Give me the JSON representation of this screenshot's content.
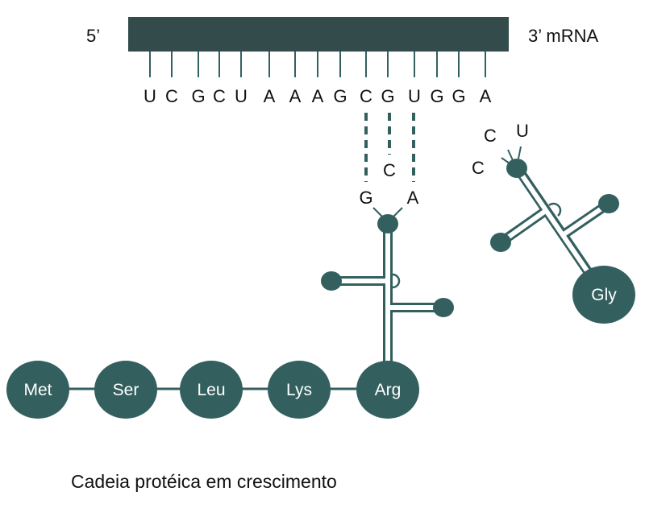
{
  "colors": {
    "teal": "#33605f",
    "strand": "#334c4b",
    "text": "#111111"
  },
  "mrna": {
    "five_prime": "5’",
    "three_prime": "3’ mRNA",
    "bases": [
      "U",
      "C",
      "G",
      "C",
      "U",
      "A",
      "A",
      "A",
      "G",
      "C",
      "G",
      "U",
      "G",
      "G",
      "A"
    ]
  },
  "trna_arg": {
    "anticodon": [
      "G",
      "C",
      "A"
    ],
    "amino_acid": "Arg"
  },
  "trna_gly": {
    "anticodon": [
      "C",
      "C",
      "U"
    ],
    "amino_acid": "Gly"
  },
  "chain": {
    "amino_acids": [
      "Met",
      "Ser",
      "Leu",
      "Lys"
    ]
  },
  "caption": "Cadeia protéica em crescimento"
}
